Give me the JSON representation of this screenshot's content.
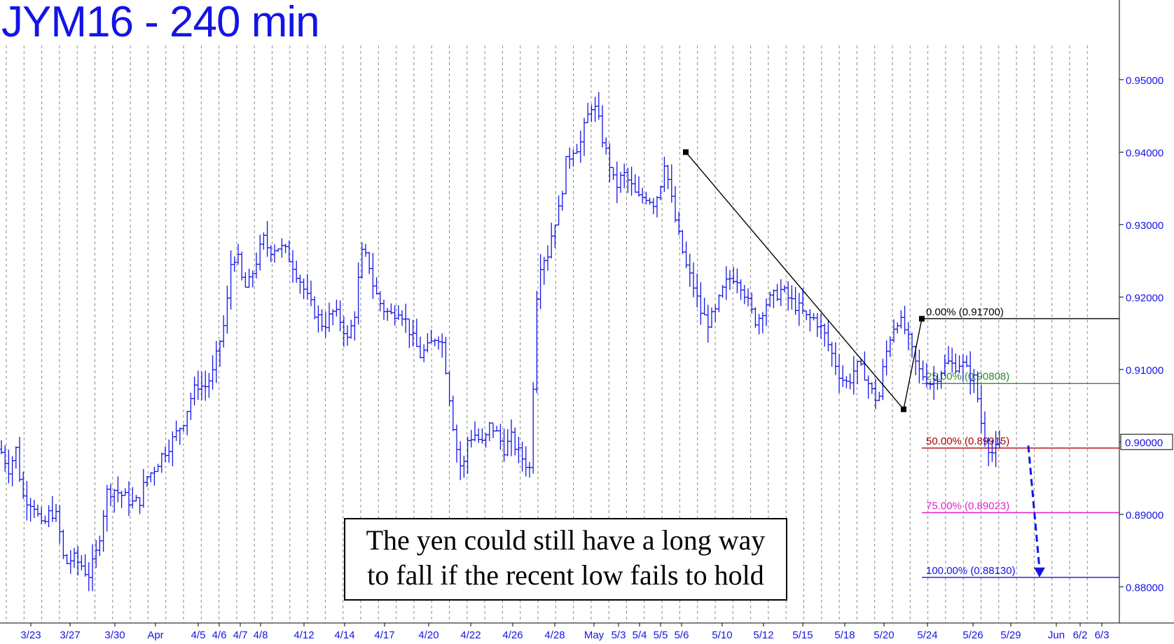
{
  "chart_data": {
    "type": "ohlc",
    "title": "JYM16 - 240 min",
    "annotation": [
      "The yen could still have a long way",
      "to fall if the recent low fails to hold"
    ],
    "ylim": [
      0.875,
      0.961
    ],
    "yticks": [
      0.95,
      0.94,
      0.93,
      0.92,
      0.91,
      0.9,
      0.89,
      0.88
    ],
    "ytick_labels": [
      "0.95000",
      "0.94000",
      "0.93000",
      "0.92000",
      "0.91000",
      "0.90000",
      "0.89000",
      "0.88000"
    ],
    "current_price": "0.90000",
    "xticks": [
      "3/23",
      "3/27",
      "3/30",
      "Apr",
      "4/5",
      "4/6",
      "4/7",
      "4/8",
      "4/12",
      "4/14",
      "4/17",
      "4/20",
      "4/22",
      "4/26",
      "4/28",
      "May",
      "5/3",
      "5/4",
      "5/5",
      "5/6",
      "5/10",
      "5/12",
      "5/15",
      "5/18",
      "5/20",
      "5/24",
      "5/26",
      "5/29",
      "Jun",
      "6/2",
      "6/3"
    ],
    "price_path": [
      [
        0,
        0.899
      ],
      [
        14,
        0.896
      ],
      [
        22,
        0.8995
      ],
      [
        32,
        0.8925
      ],
      [
        48,
        0.8915
      ],
      [
        60,
        0.888
      ],
      [
        72,
        0.8905
      ],
      [
        82,
        0.8895
      ],
      [
        92,
        0.883
      ],
      [
        104,
        0.884
      ],
      [
        116,
        0.883
      ],
      [
        126,
        0.8815
      ],
      [
        136,
        0.884
      ],
      [
        144,
        0.888
      ],
      [
        152,
        0.893
      ],
      [
        162,
        0.8935
      ],
      [
        176,
        0.8925
      ],
      [
        190,
        0.8915
      ],
      [
        200,
        0.892
      ],
      [
        208,
        0.895
      ],
      [
        218,
        0.896
      ],
      [
        230,
        0.898
      ],
      [
        248,
        0.9005
      ],
      [
        262,
        0.903
      ],
      [
        272,
        0.906
      ],
      [
        282,
        0.908
      ],
      [
        292,
        0.9075
      ],
      [
        304,
        0.9095
      ],
      [
        314,
        0.914
      ],
      [
        322,
        0.917
      ],
      [
        330,
        0.925
      ],
      [
        338,
        0.926
      ],
      [
        348,
        0.921
      ],
      [
        356,
        0.922
      ],
      [
        366,
        0.925
      ],
      [
        376,
        0.928
      ],
      [
        384,
        0.9265
      ],
      [
        396,
        0.927
      ],
      [
        406,
        0.9265
      ],
      [
        418,
        0.9245
      ],
      [
        430,
        0.922
      ],
      [
        440,
        0.9195
      ],
      [
        452,
        0.9175
      ],
      [
        462,
        0.916
      ],
      [
        476,
        0.918
      ],
      [
        488,
        0.9165
      ],
      [
        496,
        0.914
      ],
      [
        506,
        0.9175
      ],
      [
        516,
        0.926
      ],
      [
        526,
        0.925
      ],
      [
        534,
        0.921
      ],
      [
        546,
        0.9185
      ],
      [
        558,
        0.9175
      ],
      [
        570,
        0.9185
      ],
      [
        580,
        0.9165
      ],
      [
        590,
        0.914
      ],
      [
        600,
        0.912
      ],
      [
        612,
        0.913
      ],
      [
        624,
        0.915
      ],
      [
        632,
        0.9135
      ],
      [
        640,
        0.9075
      ],
      [
        650,
        0.9
      ],
      [
        660,
        0.8955
      ],
      [
        668,
        0.9005
      ],
      [
        678,
        0.901
      ],
      [
        690,
        0.8995
      ],
      [
        700,
        0.9025
      ],
      [
        710,
        0.901
      ],
      [
        720,
        0.899
      ],
      [
        730,
        0.9005
      ],
      [
        740,
        0.8985
      ],
      [
        748,
        0.8975
      ],
      [
        758,
        0.896
      ],
      [
        764,
        0.9185
      ],
      [
        772,
        0.925
      ],
      [
        782,
        0.926
      ],
      [
        790,
        0.93
      ],
      [
        798,
        0.932
      ],
      [
        808,
        0.9385
      ],
      [
        818,
        0.9405
      ],
      [
        828,
        0.941
      ],
      [
        836,
        0.944
      ],
      [
        846,
        0.947
      ],
      [
        854,
        0.9445
      ],
      [
        862,
        0.941
      ],
      [
        870,
        0.9385
      ],
      [
        878,
        0.935
      ],
      [
        890,
        0.937
      ],
      [
        900,
        0.9355
      ],
      [
        910,
        0.9335
      ],
      [
        922,
        0.934
      ],
      [
        934,
        0.933
      ],
      [
        942,
        0.935
      ],
      [
        948,
        0.939
      ],
      [
        954,
        0.936
      ],
      [
        962,
        0.9315
      ],
      [
        970,
        0.928
      ],
      [
        980,
        0.924
      ],
      [
        990,
        0.9215
      ],
      [
        1000,
        0.918
      ],
      [
        1010,
        0.9165
      ],
      [
        1020,
        0.9175
      ],
      [
        1030,
        0.9205
      ],
      [
        1040,
        0.9225
      ],
      [
        1050,
        0.923
      ],
      [
        1060,
        0.9215
      ],
      [
        1070,
        0.9185
      ],
      [
        1080,
        0.9165
      ],
      [
        1092,
        0.919
      ],
      [
        1104,
        0.92
      ],
      [
        1116,
        0.921
      ],
      [
        1128,
        0.9195
      ],
      [
        1140,
        0.9185
      ],
      [
        1152,
        0.917
      ],
      [
        1164,
        0.917
      ],
      [
        1176,
        0.915
      ],
      [
        1188,
        0.912
      ],
      [
        1200,
        0.909
      ],
      [
        1210,
        0.908
      ],
      [
        1222,
        0.9105
      ],
      [
        1234,
        0.9095
      ],
      [
        1244,
        0.907
      ],
      [
        1254,
        0.9055
      ],
      [
        1262,
        0.911
      ],
      [
        1272,
        0.915
      ],
      [
        1280,
        0.917
      ],
      [
        1290,
        0.916
      ],
      [
        1300,
        0.913
      ],
      [
        1310,
        0.91
      ],
      [
        1320,
        0.909
      ],
      [
        1330,
        0.908
      ],
      [
        1340,
        0.9095
      ],
      [
        1352,
        0.911
      ],
      [
        1362,
        0.9105
      ],
      [
        1372,
        0.911
      ],
      [
        1382,
        0.9095
      ],
      [
        1392,
        0.9085
      ],
      [
        1400,
        0.903
      ],
      [
        1408,
        0.9
      ],
      [
        1416,
        0.8985
      ],
      [
        1424,
        0.899
      ],
      [
        1432,
        0.9
      ]
    ],
    "trendline": {
      "points": [
        [
          979,
          0.94
        ],
        [
          1290,
          0.9045
        ],
        [
          1316,
          0.917
        ]
      ],
      "color": "#000000"
    },
    "projection": {
      "from": [
        1468,
        0.8995
      ],
      "to": [
        1484,
        0.8813
      ],
      "color": "#1414e6"
    },
    "fib_levels": [
      {
        "label": "0.00% (0.91700)",
        "value": 0.917,
        "color": "#000000"
      },
      {
        "label": "25.00% (0.90808)",
        "value": 0.90808,
        "color": "#2e8b2e"
      },
      {
        "label": "50.00% (0.89915)",
        "value": 0.89915,
        "color": "#b00000"
      },
      {
        "label": "75.00% (0.89023)",
        "value": 0.89023,
        "color": "#e020d0"
      },
      {
        "label": "100.00% (0.88130)",
        "value": 0.8813,
        "color": "#1414e6"
      }
    ],
    "colors": {
      "bars": "#1414e6",
      "axis_text": "#1414e6",
      "grid": "#8a8a8a"
    }
  }
}
